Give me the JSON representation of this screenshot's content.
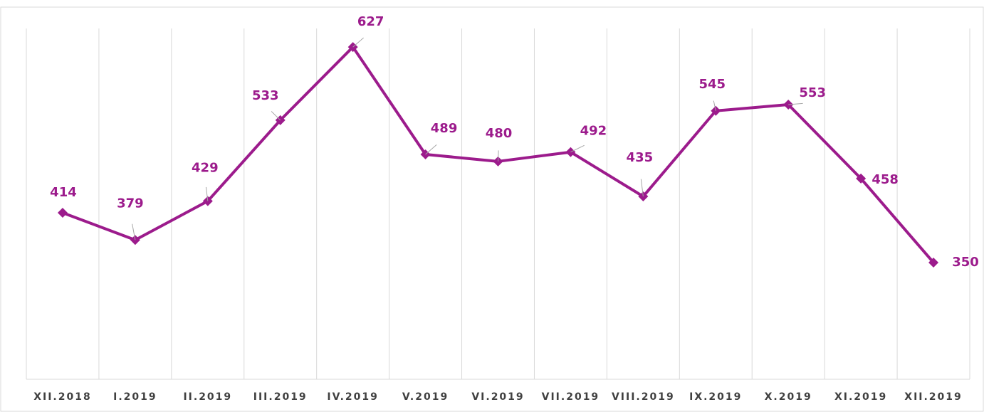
{
  "chart_data": {
    "type": "line",
    "categories": [
      "XII.2018",
      "I.2019",
      "II.2019",
      "III.2019",
      "IV.2019",
      "V.2019",
      "VI.2019",
      "VII.2019",
      "VIII.2019",
      "IX.2019",
      "X.2019",
      "XI.2019",
      "XII.2019"
    ],
    "series": [
      {
        "name": null,
        "color": "#9c1b8c",
        "values": [
          414,
          379,
          429,
          533,
          627,
          489,
          480,
          492,
          435,
          545,
          553,
          458,
          350
        ]
      }
    ],
    "ylim": [
      200,
      660
    ],
    "grid": true,
    "markers": "diamond",
    "data_labels": true
  }
}
